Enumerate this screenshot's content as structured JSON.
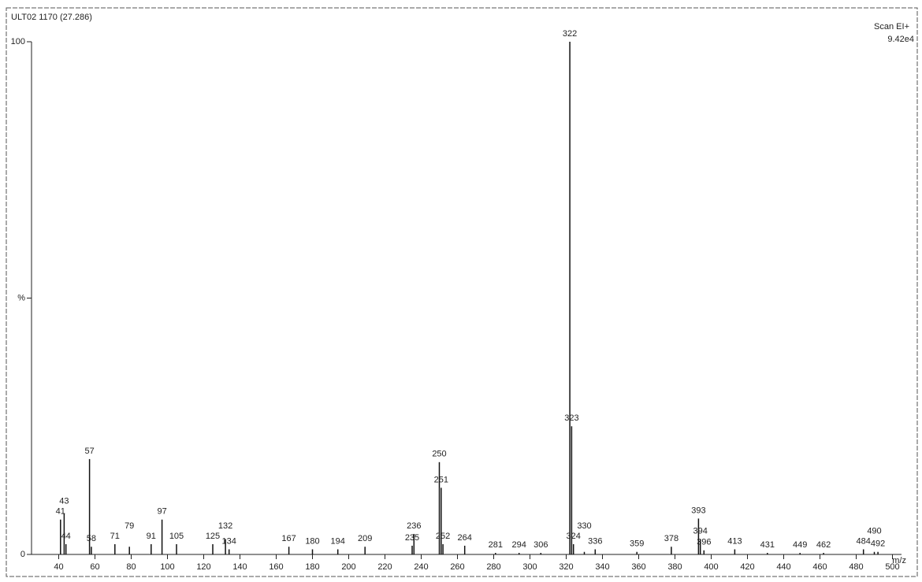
{
  "chart_data": {
    "type": "bar",
    "title": "ULT02 1170 (27.286)",
    "scan": "Scan EI+",
    "intensity": "9.42e4",
    "x_label": "m/z",
    "x": [
      41,
      43,
      44,
      57,
      58,
      71,
      79,
      91,
      97,
      105,
      125,
      132,
      134,
      167,
      180,
      194,
      209,
      235,
      236,
      250,
      251,
      252,
      264,
      281,
      294,
      306,
      322,
      323,
      324,
      330,
      336,
      359,
      378,
      393,
      394,
      396,
      413,
      431,
      449,
      462,
      484,
      490,
      492
    ],
    "values": [
      6.8,
      8,
      2,
      18.6,
      1.5,
      2,
      1.5,
      2,
      6.8,
      2,
      2,
      3,
      1,
      1.5,
      1,
      1,
      1.5,
      1.7,
      4,
      18,
      13,
      2,
      1.7,
      0.3,
      0.3,
      0.3,
      100,
      25,
      2,
      0.5,
      1,
      0.5,
      1.5,
      7,
      3,
      0.8,
      1,
      0.3,
      0.3,
      0.3,
      1,
      0.5,
      0.5
    ],
    "color": "#111111",
    "xlim": [
      25,
      505
    ],
    "ylim": [
      0,
      100
    ],
    "xticks": [
      40,
      60,
      80,
      100,
      120,
      140,
      160,
      180,
      200,
      220,
      240,
      260,
      280,
      300,
      320,
      340,
      360,
      380,
      400,
      420,
      440,
      460,
      480,
      500
    ],
    "yticks": [
      0,
      {
        "value": 50,
        "label": "%"
      },
      100
    ]
  }
}
